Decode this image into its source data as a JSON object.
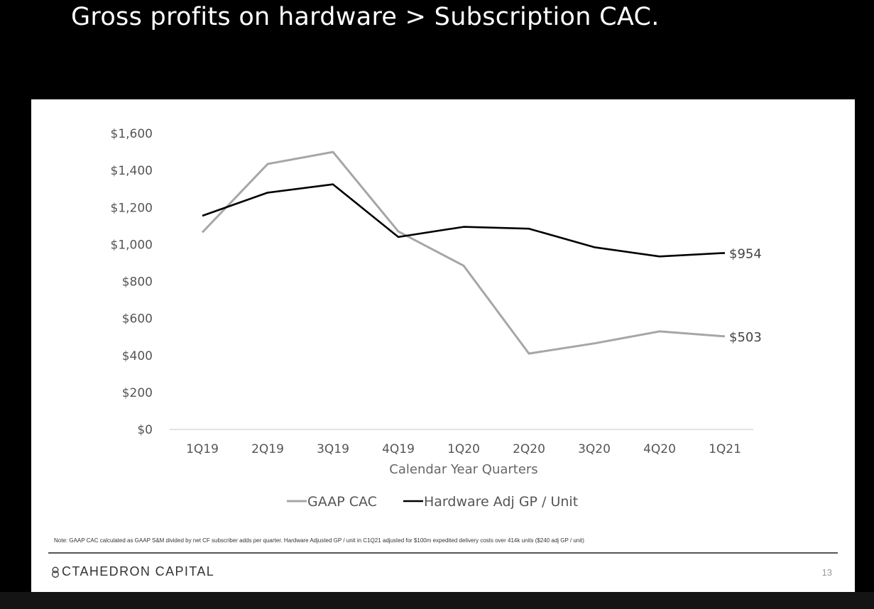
{
  "slide": {
    "title": "Gross profits on hardware > Subscription CAC.",
    "note": "Note: GAAP CAC calculated as GAAP S&M divided by net CF subscriber adds per quarter. Hardware Adjusted GP / unit in C1Q21 adjusted for $100m expedited delivery costs over 414k units ($240 adj GP / unit)",
    "brand": "CTAHEDRON CAPITAL",
    "brand_icon": "octahedron-logo-icon",
    "page_number": "13"
  },
  "chart_data": {
    "type": "line",
    "title": "",
    "xlabel": "Calendar Year Quarters",
    "ylabel": "",
    "categories": [
      "1Q19",
      "2Q19",
      "3Q19",
      "4Q19",
      "1Q20",
      "2Q20",
      "3Q20",
      "4Q20",
      "1Q21"
    ],
    "ylim": [
      0,
      1600
    ],
    "yticks": [
      0,
      200,
      400,
      600,
      800,
      1000,
      1200,
      1400,
      1600
    ],
    "ytick_labels": [
      "$0",
      "$200",
      "$400",
      "$600",
      "$800",
      "$1,000",
      "$1,200",
      "$1,400",
      "$1,600"
    ],
    "grid": false,
    "legend": "bottom-center",
    "series": [
      {
        "name": "GAAP CAC",
        "color": "#a6a6a6",
        "values": [
          1065,
          1435,
          1500,
          1070,
          885,
          410,
          465,
          530,
          503
        ],
        "end_label": "$503"
      },
      {
        "name": "Hardware Adj GP / Unit",
        "color": "#000000",
        "values": [
          1155,
          1280,
          1325,
          1040,
          1095,
          1085,
          985,
          935,
          954
        ],
        "end_label": "$954"
      }
    ]
  }
}
